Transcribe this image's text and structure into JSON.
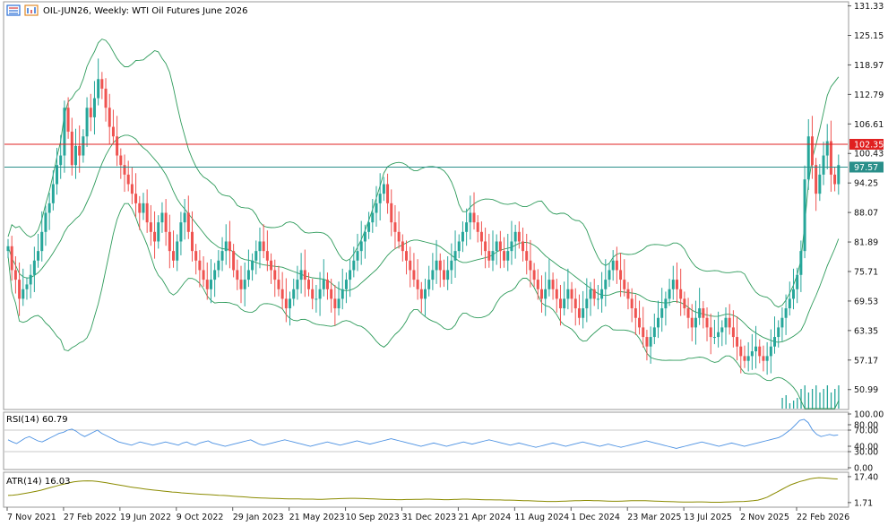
{
  "header": {
    "symbol_title": "OIL-JUN26, Weekly:  WTI Oil Futures June 2026"
  },
  "colors": {
    "bull": "#26a69a",
    "bear": "#ef5350",
    "bands": "#2e9b5b",
    "rsi": "#4a90e2",
    "atr": "#8b8b00",
    "red_line": "#e02020",
    "teal_line": "#2a8f8a",
    "volume": "#26a69a"
  },
  "chart_data": [
    {
      "type": "candlestick",
      "panel": "price",
      "title": "OIL-JUN26, Weekly:  WTI Oil Futures June 2026",
      "y_ticks": [
        "131.33",
        "125.15",
        "118.97",
        "112.79",
        "106.61",
        "100.43",
        "94.25",
        "88.07",
        "81.89",
        "75.71",
        "69.53",
        "63.35",
        "57.17",
        "50.99"
      ],
      "ylim": [
        47,
        132
      ],
      "x_ticks": [
        "7 Nov 2021",
        "27 Feb 2022",
        "19 Jun 2022",
        "9 Oct 2022",
        "29 Jan 2023",
        "21 May 2023",
        "10 Sep 2023",
        "31 Dec 2023",
        "21 Apr 2024",
        "11 Aug 2024",
        "1 Dec 2024",
        "23 Mar 2025",
        "13 Jul 2025",
        "2 Nov 2025",
        "22 Feb 2026"
      ],
      "horizontal_lines": [
        {
          "label": "102.35",
          "value": 102.35,
          "color": "#e02020"
        },
        {
          "label": "97.57",
          "value": 97.57,
          "color": "#2a8f8a"
        }
      ],
      "closes": [
        81,
        76,
        74,
        70,
        72,
        73,
        75,
        78,
        80,
        84,
        88,
        90,
        94,
        98,
        100,
        110,
        105,
        98,
        102,
        100,
        104,
        110,
        108,
        112,
        116,
        114,
        110,
        106,
        104,
        100,
        98,
        96,
        94,
        92,
        90,
        88,
        90,
        86,
        84,
        82,
        86,
        88,
        84,
        80,
        78,
        82,
        86,
        88,
        84,
        80,
        78,
        76,
        74,
        72,
        74,
        76,
        78,
        80,
        82,
        80,
        76,
        74,
        72,
        74,
        76,
        78,
        80,
        82,
        80,
        78,
        76,
        74,
        72,
        70,
        68,
        70,
        72,
        74,
        76,
        74,
        72,
        70,
        70,
        72,
        74,
        72,
        70,
        68,
        70,
        72,
        74,
        76,
        78,
        80,
        82,
        84,
        86,
        88,
        90,
        92,
        94,
        90,
        86,
        84,
        82,
        80,
        78,
        76,
        74,
        72,
        70,
        72,
        74,
        76,
        78,
        76,
        74,
        76,
        78,
        80,
        82,
        84,
        86,
        88,
        86,
        84,
        82,
        80,
        78,
        80,
        82,
        80,
        78,
        80,
        82,
        84,
        82,
        80,
        78,
        76,
        74,
        72,
        70,
        72,
        74,
        72,
        70,
        68,
        70,
        72,
        70,
        68,
        66,
        68,
        70,
        72,
        70,
        70,
        72,
        74,
        76,
        78,
        76,
        74,
        72,
        70,
        68,
        66,
        64,
        62,
        60,
        62,
        64,
        66,
        68,
        70,
        72,
        74,
        72,
        70,
        68,
        66,
        64,
        66,
        68,
        66,
        64,
        62,
        62,
        63,
        64,
        66,
        64,
        62,
        60,
        58,
        57,
        58,
        59,
        60,
        58,
        57,
        58,
        60,
        62,
        64,
        66,
        68,
        70,
        72,
        75,
        80,
        95,
        104,
        98,
        92,
        96,
        100,
        103,
        96,
        94,
        98
      ],
      "highs_max": 131.33,
      "bollinger": "upper, middle and lower band lines"
    },
    {
      "type": "line",
      "panel": "rsi",
      "title": "RSI(14) 60.79",
      "series": [
        {
          "name": "RSI(14)",
          "last": 60.79
        }
      ],
      "y_ticks": [
        "100.00",
        "80.00",
        "70.00",
        "40.00",
        "30.00",
        "0.00"
      ],
      "ylim": [
        0,
        100
      ],
      "levels": [
        70,
        30
      ],
      "values": [
        52,
        48,
        45,
        50,
        55,
        58,
        54,
        50,
        48,
        52,
        56,
        60,
        64,
        66,
        70,
        72,
        68,
        62,
        58,
        62,
        66,
        70,
        64,
        60,
        56,
        52,
        48,
        46,
        44,
        42,
        45,
        48,
        46,
        44,
        42,
        44,
        46,
        48,
        46,
        44,
        42,
        46,
        48,
        44,
        42,
        46,
        48,
        50,
        46,
        44,
        42,
        40,
        42,
        44,
        46,
        48,
        50,
        52,
        48,
        44,
        42,
        44,
        46,
        48,
        50,
        52,
        50,
        48,
        46,
        44,
        42,
        40,
        42,
        44,
        46,
        48,
        46,
        44,
        42,
        44,
        46,
        48,
        50,
        48,
        46,
        44,
        46,
        48,
        50,
        52,
        54,
        52,
        50,
        48,
        46,
        44,
        42,
        40,
        42,
        44,
        46,
        44,
        42,
        40,
        42,
        44,
        46,
        48,
        46,
        44,
        46,
        48,
        50,
        52,
        50,
        48,
        46,
        44,
        42,
        44,
        46,
        44,
        42,
        40,
        38,
        40,
        42,
        44,
        46,
        44,
        42,
        40,
        42,
        44,
        46,
        48,
        46,
        44,
        42,
        40,
        42,
        44,
        42,
        40,
        38,
        40,
        42,
        44,
        46,
        48,
        50,
        48,
        46,
        44,
        42,
        40,
        38,
        36,
        38,
        40,
        42,
        44,
        46,
        48,
        46,
        44,
        42,
        40,
        42,
        44,
        46,
        44,
        42,
        40,
        42,
        44,
        46,
        48,
        50,
        52,
        54,
        56,
        60,
        66,
        72,
        80,
        88,
        90,
        84,
        70,
        62,
        58,
        60,
        62,
        60,
        61
      ]
    },
    {
      "type": "area",
      "panel": "atr",
      "title": "ATR(14) 16.03",
      "series": [
        {
          "name": "ATR(14)",
          "last": 16.03
        }
      ],
      "y_ticks": [
        "17.40",
        "1.71"
      ],
      "ylim": [
        0,
        19
      ],
      "values": [
        6,
        6.2,
        6.5,
        7,
        7.5,
        8,
        8.6,
        9.2,
        10,
        10.8,
        11.5,
        12.3,
        13,
        13.6,
        14.2,
        14.6,
        14.8,
        14.9,
        14.8,
        14.5,
        14.1,
        13.7,
        13.2,
        12.7,
        12.2,
        11.7,
        11.2,
        10.8,
        10.4,
        10,
        9.6,
        9.3,
        9,
        8.7,
        8.4,
        8.1,
        7.9,
        7.6,
        7.4,
        7.2,
        7,
        6.8,
        6.6,
        6.5,
        6.3,
        6.1,
        6,
        5.8,
        5.6,
        5.4,
        5.2,
        5,
        4.8,
        4.6,
        4.5,
        4.4,
        4.3,
        4.2,
        4.1,
        4,
        3.9,
        3.9,
        3.9,
        3.8,
        3.8,
        3.8,
        3.7,
        3.7,
        3.8,
        3.9,
        4,
        4.1,
        4.2,
        4.3,
        4.3,
        4.2,
        4.1,
        4,
        3.9,
        3.8,
        3.7,
        3.6,
        3.6,
        3.5,
        3.5,
        3.6,
        3.6,
        3.7,
        3.7,
        3.8,
        3.8,
        3.7,
        3.6,
        3.5,
        3.5,
        3.6,
        3.7,
        3.8,
        3.8,
        3.7,
        3.6,
        3.5,
        3.4,
        3.4,
        3.3,
        3.3,
        3.2,
        3.2,
        3.1,
        3,
        2.9,
        2.8,
        2.7,
        2.6,
        2.5,
        2.4,
        2.4,
        2.4,
        2.5,
        2.6,
        2.7,
        2.8,
        2.9,
        3,
        3,
        2.9,
        2.8,
        2.7,
        2.6,
        2.5,
        2.5,
        2.6,
        2.7,
        2.8,
        2.9,
        2.9,
        2.8,
        2.7,
        2.6,
        2.5,
        2.4,
        2.3,
        2.2,
        2.1,
        2,
        2,
        2,
        2.1,
        2.1,
        2,
        1.9,
        1.9,
        1.9,
        2,
        2.1,
        2.2,
        2.3,
        2.4,
        2.6,
        2.8,
        3.2,
        4,
        5,
        6.5,
        8,
        9.5,
        11,
        12.5,
        13.5,
        14.5,
        15.2,
        16,
        16.5,
        16.8,
        16.6,
        16.4,
        16.2,
        16.03
      ]
    }
  ]
}
